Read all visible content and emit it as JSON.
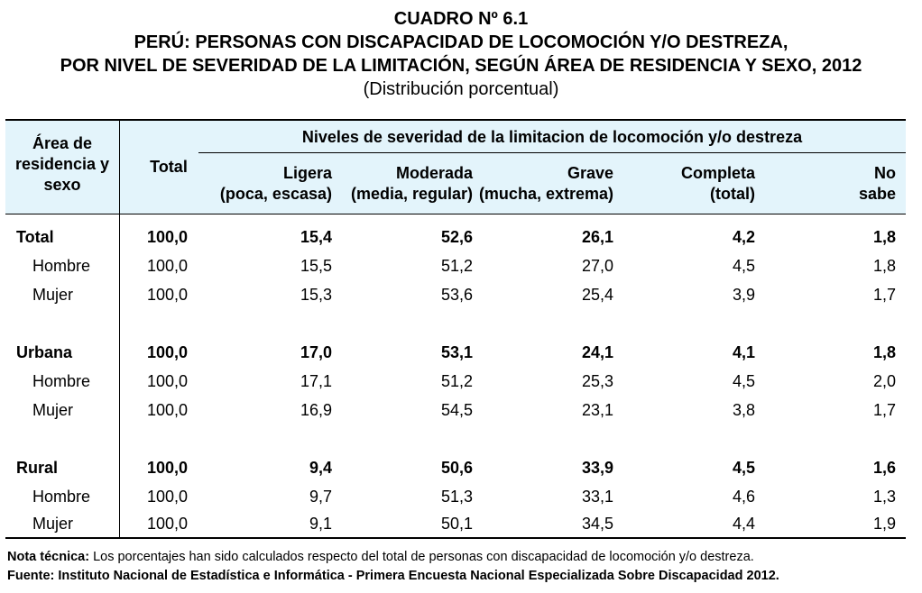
{
  "title": {
    "line1": "CUADRO Nº 6.1",
    "line2": "PERÚ: PERSONAS CON DISCAPACIDAD DE LOCOMOCIÓN Y/O DESTREZA,",
    "line3": "POR NIVEL DE SEVERIDAD DE LA LIMITACIÓN, SEGÚN ÁREA DE RESIDENCIA Y SEXO, 2012",
    "subtitle": "(Distribución porcentual)"
  },
  "header": {
    "area_lines": [
      "Área de",
      "residencia y",
      "sexo"
    ],
    "total": "Total",
    "group": "Niveles de severidad de la limitacion de locomoción y/o destreza",
    "columns": [
      {
        "line1": "Ligera",
        "line2": "(poca, escasa)"
      },
      {
        "line1": "Moderada",
        "line2": "(media, regular)"
      },
      {
        "line1": "Grave",
        "line2": "(mucha, extrema)"
      },
      {
        "line1": "Completa",
        "line2": "(total)"
      },
      {
        "line1": "No",
        "line2": "sabe"
      }
    ]
  },
  "rows": [
    {
      "label": "Total",
      "values": [
        "100,0",
        "15,4",
        "52,6",
        "26,1",
        "4,2",
        "1,8"
      ]
    },
    {
      "label": "Hombre",
      "values": [
        "100,0",
        "15,5",
        "51,2",
        "27,0",
        "4,5",
        "1,8"
      ]
    },
    {
      "label": "Mujer",
      "values": [
        "100,0",
        "15,3",
        "53,6",
        "25,4",
        "3,9",
        "1,7"
      ]
    },
    {
      "label": "Urbana",
      "values": [
        "100,0",
        "17,0",
        "53,1",
        "24,1",
        "4,1",
        "1,8"
      ]
    },
    {
      "label": "Hombre",
      "values": [
        "100,0",
        "17,1",
        "51,2",
        "25,3",
        "4,5",
        "2,0"
      ]
    },
    {
      "label": "Mujer",
      "values": [
        "100,0",
        "16,9",
        "54,5",
        "23,1",
        "3,8",
        "1,7"
      ]
    },
    {
      "label": "Rural",
      "values": [
        "100,0",
        "9,4",
        "50,6",
        "33,9",
        "4,5",
        "1,6"
      ]
    },
    {
      "label": "Hombre",
      "values": [
        "100,0",
        "9,7",
        "51,3",
        "33,1",
        "4,6",
        "1,3"
      ]
    },
    {
      "label": "Mujer",
      "values": [
        "100,0",
        "9,1",
        "50,1",
        "34,5",
        "4,4",
        "1,9"
      ]
    }
  ],
  "notes": {
    "nota_label": "Nota técnica:",
    "nota_text": " Los porcentajes han sido calculados respecto del total de personas con discapacidad de locomoción y/o destreza.",
    "fuente": "Fuente: Instituto Nacional de Estadística e Informática - Primera Encuesta Nacional Especializada Sobre Discapacidad 2012."
  }
}
